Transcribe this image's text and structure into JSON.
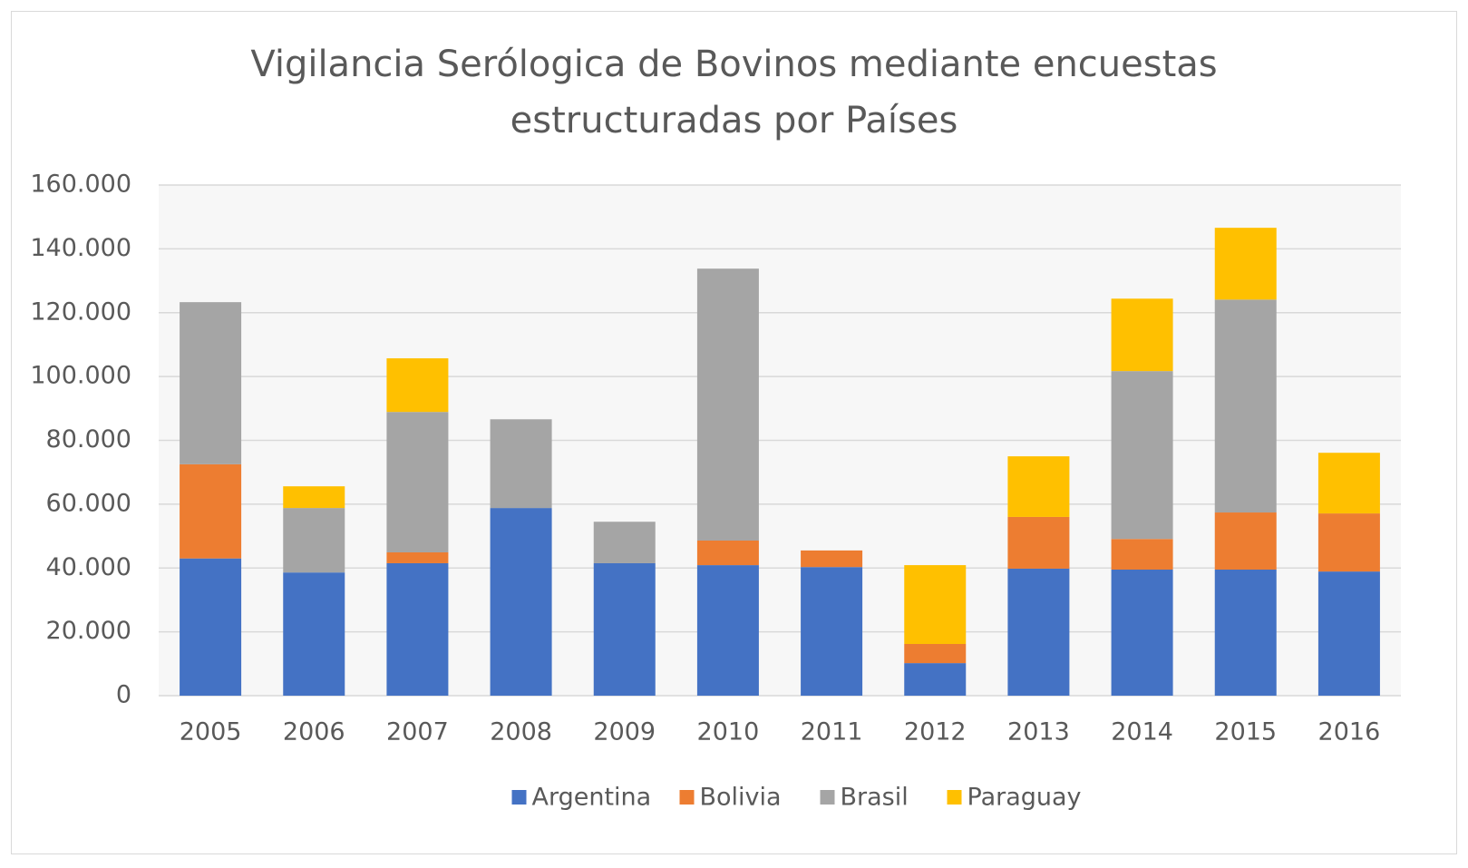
{
  "chart_data": {
    "type": "stacked_bar",
    "title": "Vigilancia Serólogica de Bovinos mediante encuestas estructuradas por Países",
    "categories": [
      "2005",
      "2006",
      "2007",
      "2008",
      "2009",
      "2010",
      "2011",
      "2012",
      "2013",
      "2014",
      "2015",
      "2016"
    ],
    "series": [
      {
        "name": "Argentina",
        "color": "#4472c4",
        "values": [
          43000,
          38600,
          41500,
          58800,
          41500,
          40900,
          40300,
          10200,
          39800,
          39500,
          39500,
          38900
        ]
      },
      {
        "name": "Bolivia",
        "color": "#ed7d31",
        "values": [
          29500,
          0,
          3400,
          0,
          0,
          7700,
          5200,
          6000,
          16200,
          9600,
          17900,
          18200
        ]
      },
      {
        "name": "Brasil",
        "color": "#a5a5a5",
        "values": [
          50800,
          20200,
          44000,
          27800,
          13000,
          85200,
          0,
          0,
          0,
          52600,
          66700,
          0
        ]
      },
      {
        "name": "Paraguay",
        "color": "#ffc000",
        "values": [
          0,
          6800,
          16800,
          0,
          0,
          0,
          0,
          24700,
          19000,
          22700,
          22500,
          19000
        ]
      }
    ],
    "ylim": [
      0,
      160000
    ],
    "yticks": [
      0,
      {
        "value": 20000,
        "label": "20.000"
      },
      {
        "value": 40000,
        "label": "40.000"
      },
      {
        "value": 60000,
        "label": "60.000"
      },
      {
        "value": 80000,
        "label": "80.000"
      },
      {
        "value": 100000,
        "label": "100.000"
      },
      {
        "value": 120000,
        "label": "120.000"
      },
      {
        "value": 140000,
        "label": "140.000"
      },
      {
        "value": 160000,
        "label": "160.000"
      }
    ],
    "grid": true,
    "legend": "bottom"
  }
}
